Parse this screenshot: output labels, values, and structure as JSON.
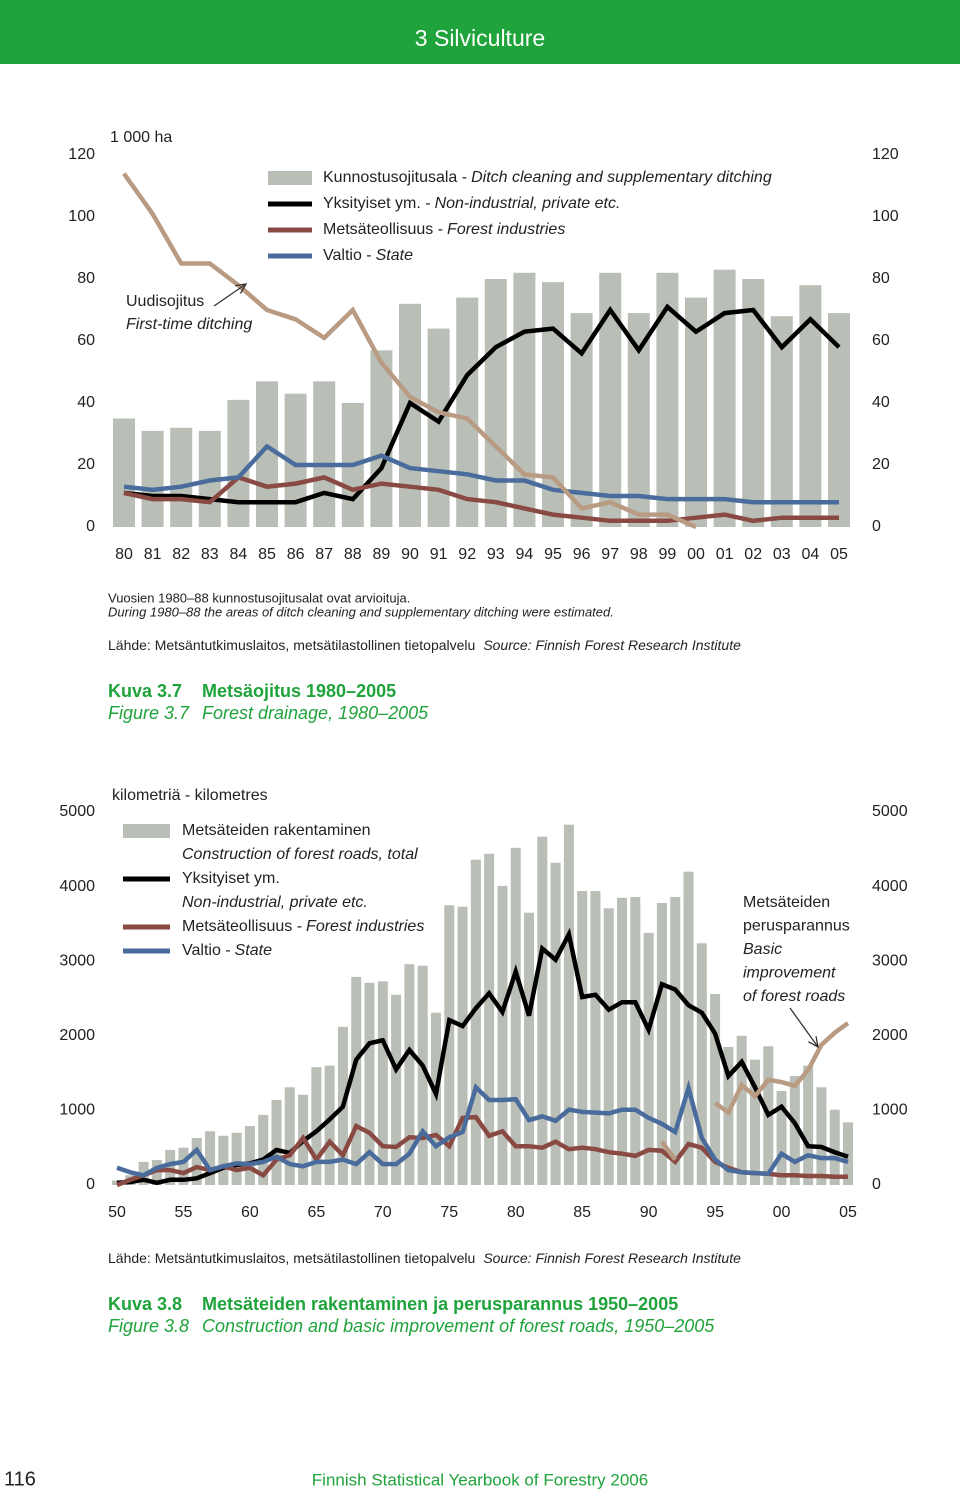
{
  "header": {
    "title": "3 Silviculture"
  },
  "chart_data": [
    {
      "type": "combo",
      "unit": "1 000 ha",
      "categories": [
        "80",
        "81",
        "82",
        "83",
        "84",
        "85",
        "86",
        "87",
        "88",
        "89",
        "90",
        "91",
        "92",
        "93",
        "94",
        "95",
        "96",
        "97",
        "98",
        "99",
        "00",
        "01",
        "02",
        "03",
        "04",
        "05"
      ],
      "ylim": [
        0,
        120
      ],
      "yticks": [
        0,
        20,
        40,
        60,
        80,
        100,
        120
      ],
      "series": [
        {
          "name": "Kunnostusojitusala -",
          "name_en": "Ditch cleaning and supplementary ditching",
          "type": "bar",
          "color": "#b9bfb6",
          "values": [
            35,
            31,
            32,
            31,
            41,
            47,
            43,
            47,
            40,
            57,
            72,
            64,
            74,
            80,
            82,
            79,
            69,
            82,
            69,
            82,
            74,
            83,
            80,
            68,
            78,
            69
          ]
        },
        {
          "name": "Yksityiset ym. -",
          "name_en": "Non-industrial, private etc.",
          "type": "line",
          "color": "#000000",
          "values": [
            11,
            10,
            10,
            9,
            8,
            8,
            8,
            11,
            9,
            19,
            40,
            34,
            49,
            58,
            63,
            64,
            56,
            70,
            57,
            71,
            63,
            69,
            70,
            58,
            67,
            58
          ]
        },
        {
          "name": "Metsäteollisuus -",
          "name_en": "Forest industries",
          "type": "line",
          "color": "#8a4a44",
          "values": [
            11,
            9,
            9,
            8,
            16,
            13,
            14,
            16,
            12,
            14,
            13,
            12,
            9,
            8,
            6,
            4,
            3,
            2,
            2,
            2,
            3,
            4,
            2,
            3,
            3,
            3
          ]
        },
        {
          "name": "Valtio -",
          "name_en": "State",
          "type": "line",
          "color": "#4a6c9c",
          "values": [
            13,
            12,
            13,
            15,
            16,
            26,
            20,
            20,
            20,
            23,
            19,
            18,
            17,
            15,
            15,
            12,
            11,
            10,
            10,
            9,
            9,
            9,
            8,
            8,
            8,
            8
          ]
        },
        {
          "label": [
            "Uudisojitus"
          ],
          "label_en": [
            "First-time ditching"
          ],
          "type": "line",
          "color": "#b99b83",
          "legend": false,
          "values": [
            114,
            101,
            85,
            85,
            78,
            70,
            67,
            61,
            70,
            53,
            42,
            37,
            35,
            26,
            17,
            16,
            6,
            8,
            4,
            4,
            0,
            null,
            null,
            null,
            null,
            null
          ]
        }
      ],
      "notes": [
        "Vuosien 1980–88 kunnostusojitusalat ovat arvioituja.",
        "During 1980–88 the areas of ditch cleaning and supplementary ditching were estimated."
      ],
      "source_fi": "Lähde: Metsäntutkimuslaitos, metsätilastollinen tietopalvelu",
      "source_en": "Source: Finnish Forest Research Institute",
      "caption": {
        "label_fi": "Kuva 3.7",
        "title_fi": "Metsäojitus 1980–2005",
        "label_en": "Figure 3.7",
        "title_en": "Forest drainage, 1980–2005"
      }
    },
    {
      "type": "combo",
      "unit": "kilometriä - kilometres",
      "x": [
        1950,
        1951,
        1952,
        1953,
        1954,
        1955,
        1956,
        1957,
        1958,
        1959,
        1960,
        1961,
        1962,
        1963,
        1964,
        1965,
        1966,
        1967,
        1968,
        1969,
        1970,
        1971,
        1972,
        1973,
        1974,
        1975,
        1976,
        1977,
        1978,
        1979,
        1980,
        1981,
        1982,
        1983,
        1984,
        1985,
        1986,
        1987,
        1988,
        1989,
        1990,
        1991,
        1992,
        1993,
        1994,
        1995,
        1996,
        1997,
        1998,
        1999,
        2000,
        2001,
        2002,
        2003,
        2004,
        2005
      ],
      "xlim": [
        1950,
        2005
      ],
      "xticks": [
        {
          "value": 1950,
          "label": "50"
        },
        {
          "value": 1955,
          "label": "55"
        },
        {
          "value": 1960,
          "label": "60"
        },
        {
          "value": 1965,
          "label": "65"
        },
        {
          "value": 1970,
          "label": "70"
        },
        {
          "value": 1975,
          "label": "75"
        },
        {
          "value": 1980,
          "label": "80"
        },
        {
          "value": 1985,
          "label": "85"
        },
        {
          "value": 1990,
          "label": "90"
        },
        {
          "value": 1995,
          "label": "95"
        },
        {
          "value": 2000,
          "label": "00"
        },
        {
          "value": 2005,
          "label": "05"
        }
      ],
      "ylim": [
        0,
        5000
      ],
      "yticks": [
        0,
        1000,
        2000,
        3000,
        4000,
        5000
      ],
      "series": [
        {
          "name": "Metsäteiden rakentaminen",
          "name_en": "Construction of forest roads, total",
          "type": "bar",
          "color": "#b9bfb6",
          "values": [
            60,
            130,
            310,
            335,
            470,
            500,
            630,
            720,
            660,
            700,
            790,
            940,
            1140,
            1310,
            1210,
            1580,
            1600,
            2120,
            2790,
            2710,
            2730,
            2550,
            2960,
            2940,
            2310,
            3750,
            3730,
            4360,
            4440,
            4010,
            4520,
            3650,
            4670,
            4320,
            4830,
            3940,
            3940,
            3710,
            3850,
            3860,
            3380,
            3780,
            3860,
            4200,
            3240,
            2560,
            1850,
            2000,
            1680,
            1860,
            1260,
            1460,
            1600,
            1310,
            1010,
            840
          ]
        },
        {
          "name": "Yksityiset ym.",
          "name_en": "Non-industrial, private etc.",
          "type": "line",
          "color": "#000000",
          "values": [
            30,
            40,
            70,
            30,
            70,
            70,
            90,
            160,
            230,
            270,
            290,
            340,
            470,
            430,
            590,
            720,
            880,
            1050,
            1680,
            1900,
            1940,
            1550,
            1810,
            1600,
            1220,
            2210,
            2130,
            2370,
            2570,
            2320,
            2860,
            2270,
            3170,
            3020,
            3360,
            2520,
            2550,
            2350,
            2450,
            2450,
            2080,
            2690,
            2620,
            2410,
            2310,
            2030,
            1460,
            1650,
            1310,
            940,
            1050,
            830,
            520,
            510,
            440,
            380
          ]
        },
        {
          "name": "Metsäteollisuus -",
          "name_en": "Forest industries",
          "type": "line",
          "color": "#8a4a44",
          "values": [
            0,
            70,
            130,
            200,
            200,
            160,
            240,
            200,
            250,
            200,
            230,
            130,
            340,
            400,
            630,
            340,
            580,
            400,
            790,
            700,
            520,
            510,
            640,
            630,
            670,
            520,
            900,
            910,
            660,
            720,
            520,
            520,
            500,
            580,
            480,
            500,
            480,
            440,
            420,
            390,
            470,
            460,
            310,
            550,
            500,
            310,
            230,
            170,
            160,
            150,
            130,
            130,
            120,
            120,
            110,
            110
          ]
        },
        {
          "name": "Valtio -",
          "name_en": "State",
          "type": "line",
          "color": "#4a6c9c",
          "values": [
            230,
            170,
            130,
            230,
            280,
            310,
            470,
            200,
            250,
            290,
            280,
            310,
            380,
            280,
            250,
            310,
            310,
            340,
            280,
            440,
            280,
            280,
            420,
            720,
            520,
            640,
            710,
            1310,
            1140,
            1140,
            1150,
            870,
            920,
            860,
            1010,
            980,
            970,
            960,
            1010,
            1010,
            900,
            820,
            710,
            1300,
            630,
            340,
            200,
            170,
            160,
            150,
            420,
            310,
            400,
            360,
            360,
            310
          ]
        },
        {
          "label": [
            "Metsäteiden",
            "perusparannus"
          ],
          "label_en": [
            "Basic",
            "improvement",
            "of forest roads"
          ],
          "type": "line",
          "color": "#b99b83",
          "legend": false,
          "values": [
            null,
            null,
            null,
            null,
            null,
            null,
            null,
            null,
            null,
            null,
            null,
            null,
            null,
            null,
            null,
            null,
            null,
            null,
            null,
            null,
            null,
            null,
            null,
            null,
            null,
            null,
            null,
            null,
            null,
            null,
            null,
            null,
            null,
            null,
            null,
            null,
            null,
            null,
            null,
            null,
            null,
            580,
            340,
            null,
            null,
            1100,
            970,
            1340,
            1190,
            1410,
            1380,
            1330,
            1540,
            1880,
            2040,
            2170
          ]
        }
      ],
      "source_fi": "Lähde: Metsäntutkimuslaitos, metsätilastollinen tietopalvelu",
      "source_en": "Source: Finnish Forest Research Institute",
      "caption": {
        "label_fi": "Kuva 3.8",
        "title_fi": "Metsäteiden rakentaminen ja perusparannus 1950–2005",
        "label_en": "Figure 3.8",
        "title_en": "Construction and basic improvement of forest roads, 1950–2005"
      }
    }
  ],
  "footer": {
    "page": "116",
    "title": "Finnish Statistical Yearbook of Forestry 2006"
  }
}
